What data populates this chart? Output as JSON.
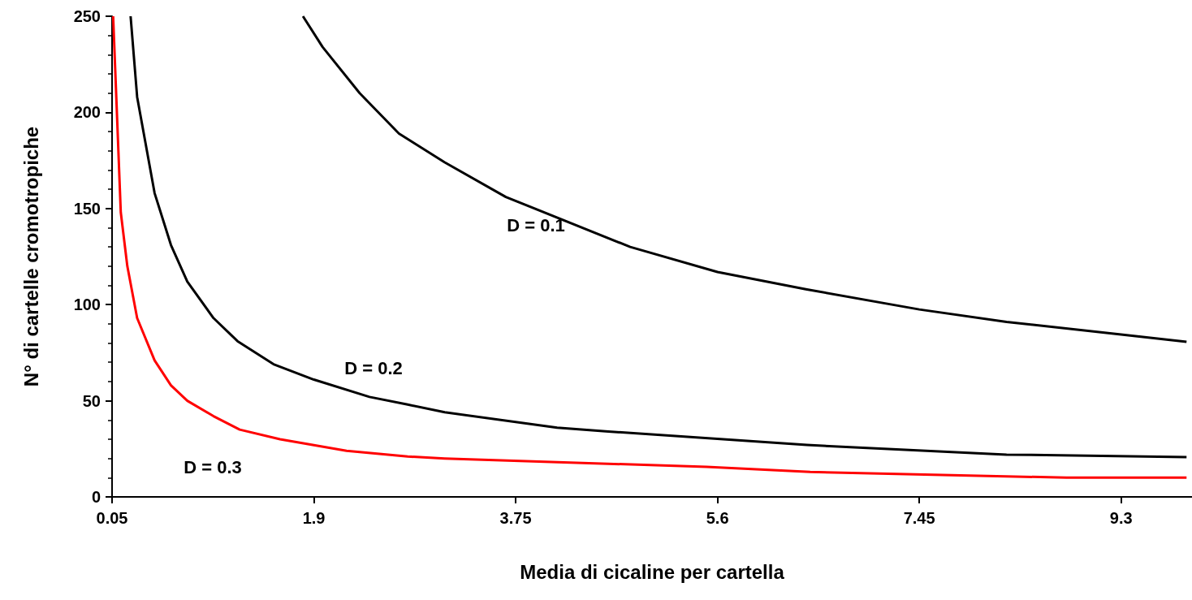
{
  "chart_data": {
    "type": "line",
    "xlabel": "Media di cicaline per cartella",
    "ylabel": "N° di cartelle cromotropiche",
    "xlim": [
      0.05,
      9.95
    ],
    "xticks": [
      0.05,
      1.9,
      3.75,
      5.6,
      7.45,
      9.3
    ],
    "ylim": [
      0,
      250
    ],
    "yticks": [
      0,
      50,
      100,
      150,
      200,
      250
    ],
    "grid": false,
    "marker": "none",
    "line_style": "solid",
    "series": [
      {
        "name": "D = 0.1",
        "color": "#000000",
        "x": [
          1.8,
          1.98,
          2.32,
          2.68,
          3.1,
          3.66,
          4.8,
          5.6,
          6.41,
          7.45,
          8.25,
          9.3,
          9.9
        ],
        "values": [
          250,
          234,
          210,
          189,
          174,
          156,
          130,
          117,
          108,
          97.5,
          91,
          84.5,
          80.7
        ]
      },
      {
        "name": "D = 0.2",
        "color": "#000000",
        "x": [
          0.22,
          0.28,
          0.44,
          0.59,
          0.74,
          0.98,
          1.2,
          1.53,
          1.9,
          2.41,
          2.76,
          3.1,
          4.13,
          4.6,
          6.42,
          8.25,
          9.9
        ],
        "values": [
          250,
          208,
          158,
          131,
          112,
          93,
          81,
          69,
          61,
          52,
          48,
          44,
          36,
          34,
          27,
          22,
          20.7
        ]
      },
      {
        "name": "D = 0.3",
        "color": "#ff0000",
        "x": [
          0.06,
          0.13,
          0.19,
          0.28,
          0.44,
          0.59,
          0.74,
          0.98,
          1.22,
          1.59,
          2.2,
          2.76,
          3.1,
          5.5,
          6.45,
          8.8,
          9.9
        ],
        "values": [
          250,
          148,
          120,
          93,
          71,
          58,
          50,
          42,
          35,
          30,
          24,
          21,
          20,
          15.6,
          13,
          10,
          10
        ]
      }
    ]
  }
}
